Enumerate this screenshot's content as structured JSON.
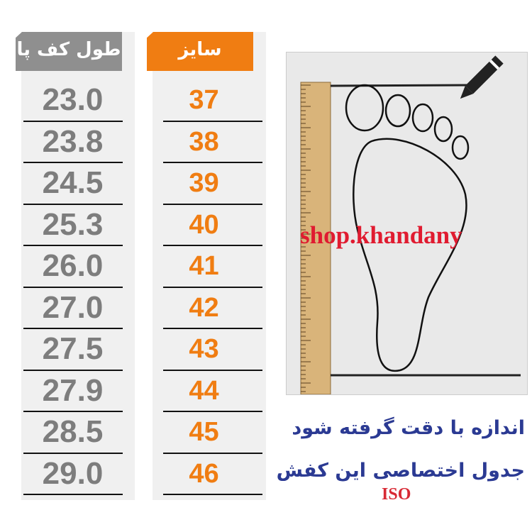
{
  "headers": {
    "foot_length": "طول کف پا",
    "size": "سایز"
  },
  "rows": [
    {
      "length": "23.0",
      "size": "37"
    },
    {
      "length": "23.8",
      "size": "38"
    },
    {
      "length": "24.5",
      "size": "39"
    },
    {
      "length": "25.3",
      "size": "40"
    },
    {
      "length": "26.0",
      "size": "41"
    },
    {
      "length": "27.0",
      "size": "42"
    },
    {
      "length": "27.5",
      "size": "43"
    },
    {
      "length": "27.9",
      "size": "44"
    },
    {
      "length": "28.5",
      "size": "45"
    },
    {
      "length": "29.0",
      "size": "46"
    }
  ],
  "watermark": "shop.khandany",
  "notes": {
    "line1": "اندازه با دقت گرفته شود",
    "line2": "جدول اختصاصی این کفش",
    "standard": "ISO"
  },
  "colors": {
    "orange": "#f07d12",
    "gray": "#8f8f8f",
    "note_blue": "#2b3a93",
    "red": "#e01b30"
  },
  "icons": [
    "pencil-icon",
    "ruler-icon",
    "foot-outline-icon"
  ]
}
